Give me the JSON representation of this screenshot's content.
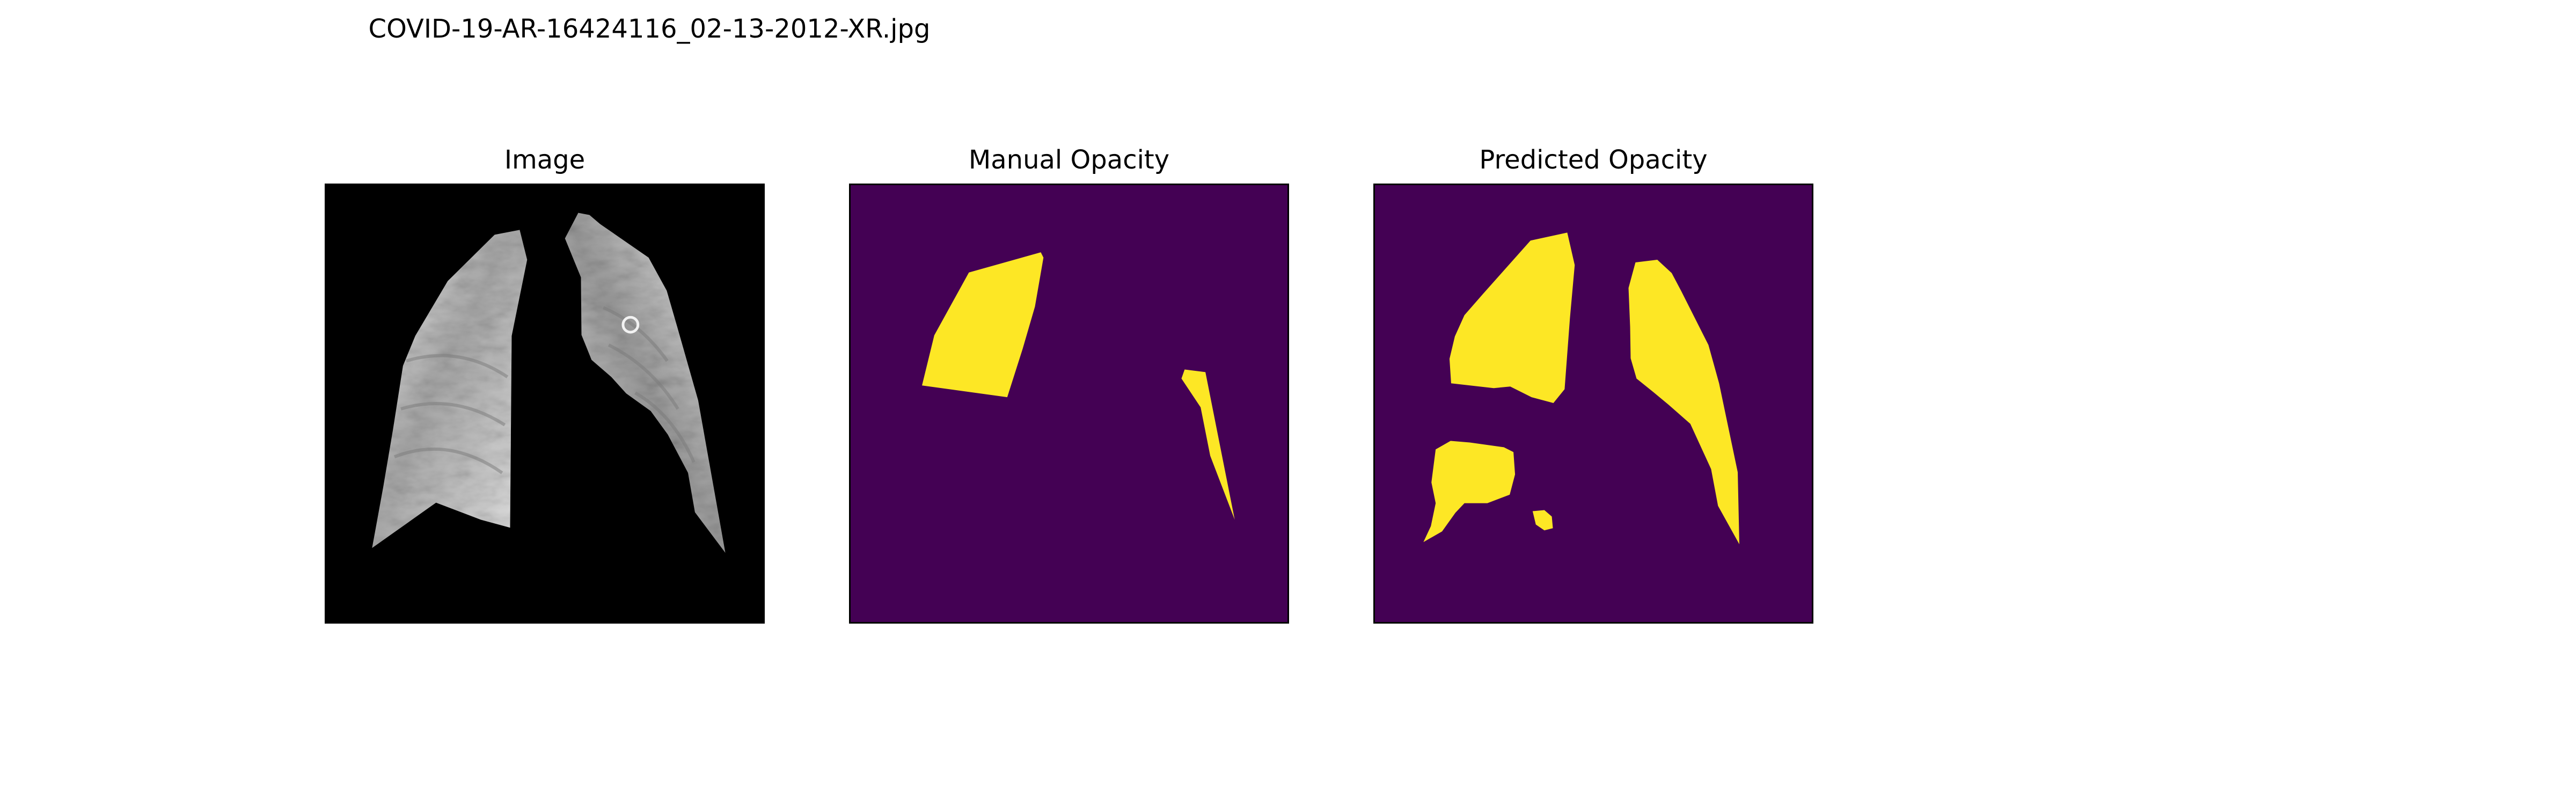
{
  "figure": {
    "title": "COVID-19-AR-16424116_02-13-2012-XR.jpg"
  },
  "panels": [
    {
      "title": "Image"
    },
    {
      "title": "Manual Opacity"
    },
    {
      "title": "Predicted Opacity"
    }
  ],
  "colors": {
    "background": "#000000",
    "mask_background": "#440154",
    "mask_foreground": "#fde725",
    "lung_light": "#d6d6d6",
    "lung_dark": "#6e6e6e"
  }
}
